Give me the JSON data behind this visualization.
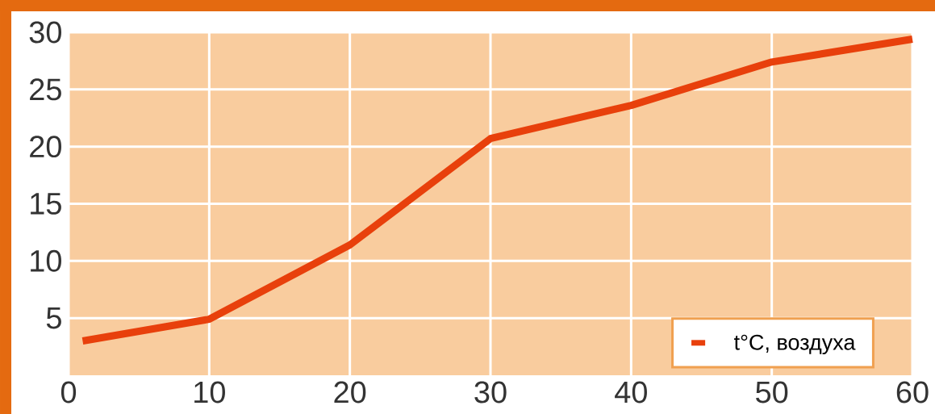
{
  "chart_data": {
    "type": "line",
    "x": [
      1,
      10,
      20,
      30,
      40,
      50,
      60
    ],
    "series": [
      {
        "name": "t°C, воздуха",
        "color": "#e8400c",
        "values": [
          3.0,
          4.9,
          11.4,
          20.7,
          23.6,
          27.4,
          29.4
        ]
      }
    ],
    "xlim": [
      0,
      60
    ],
    "ylim": [
      0,
      30
    ],
    "xticks": [
      0,
      10,
      20,
      30,
      40,
      50,
      60
    ],
    "yticks": [
      5,
      10,
      15,
      20,
      25,
      30
    ],
    "grid": true,
    "legend": "bottom right",
    "marker": "none",
    "line_style": "solid"
  }
}
